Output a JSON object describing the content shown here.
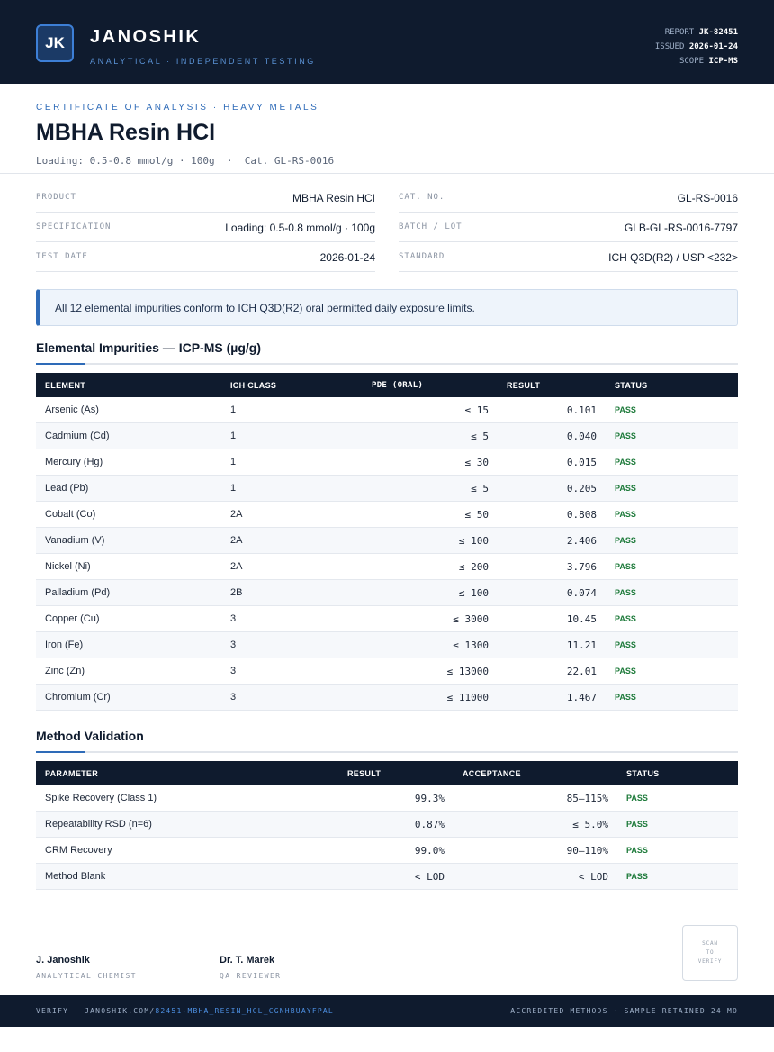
{
  "header": {
    "logo_text": "JK",
    "brand": "JANOSHIK",
    "tagline": "ANALYTICAL · INDEPENDENT TESTING",
    "meta": [
      {
        "label": "REPORT",
        "value": "JK-82451"
      },
      {
        "label": "ISSUED",
        "value": "2026-01-24"
      },
      {
        "label": "SCOPE",
        "value": "ICP-MS"
      }
    ]
  },
  "title_block": {
    "eyebrow": "CERTIFICATE OF ANALYSIS · HEAVY METALS",
    "title": "MBHA Resin HCI",
    "subtitle": "Loading: 0.5-0.8 mmol/g · 100g  ·  Cat. GL-RS-0016"
  },
  "info": {
    "left": [
      {
        "label": "PRODUCT",
        "value": "MBHA Resin HCI"
      },
      {
        "label": "SPECIFICATION",
        "value": "Loading: 0.5-0.8 mmol/g · 100g"
      },
      {
        "label": "TEST DATE",
        "value": "2026-01-24"
      }
    ],
    "right": [
      {
        "label": "CAT. NO.",
        "value": "GL-RS-0016"
      },
      {
        "label": "BATCH / LOT",
        "value": "GLB-GL-RS-0016-7797"
      },
      {
        "label": "STANDARD",
        "value": "ICH Q3D(R2) / USP <232>"
      }
    ]
  },
  "notice": "All 12 elemental impurities conform to ICH Q3D(R2) oral permitted daily exposure limits.",
  "impurities": {
    "heading": "Elemental Impurities — ICP-MS (µg/g)",
    "columns": [
      "ELEMENT",
      "ICH CLASS",
      "PDE (ORAL)",
      "RESULT",
      "STATUS"
    ],
    "rows": [
      {
        "element": "Arsenic (As)",
        "class": "1",
        "pde": "≤ 15",
        "result": "0.101",
        "status": "PASS"
      },
      {
        "element": "Cadmium (Cd)",
        "class": "1",
        "pde": "≤ 5",
        "result": "0.040",
        "status": "PASS"
      },
      {
        "element": "Mercury (Hg)",
        "class": "1",
        "pde": "≤ 30",
        "result": "0.015",
        "status": "PASS"
      },
      {
        "element": "Lead (Pb)",
        "class": "1",
        "pde": "≤ 5",
        "result": "0.205",
        "status": "PASS"
      },
      {
        "element": "Cobalt (Co)",
        "class": "2A",
        "pde": "≤ 50",
        "result": "0.808",
        "status": "PASS"
      },
      {
        "element": "Vanadium (V)",
        "class": "2A",
        "pde": "≤ 100",
        "result": "2.406",
        "status": "PASS"
      },
      {
        "element": "Nickel (Ni)",
        "class": "2A",
        "pde": "≤ 200",
        "result": "3.796",
        "status": "PASS"
      },
      {
        "element": "Palladium (Pd)",
        "class": "2B",
        "pde": "≤ 100",
        "result": "0.074",
        "status": "PASS"
      },
      {
        "element": "Copper (Cu)",
        "class": "3",
        "pde": "≤ 3000",
        "result": "10.45",
        "status": "PASS"
      },
      {
        "element": "Iron (Fe)",
        "class": "3",
        "pde": "≤ 1300",
        "result": "11.21",
        "status": "PASS"
      },
      {
        "element": "Zinc (Zn)",
        "class": "3",
        "pde": "≤ 13000",
        "result": "22.01",
        "status": "PASS"
      },
      {
        "element": "Chromium (Cr)",
        "class": "3",
        "pde": "≤ 11000",
        "result": "1.467",
        "status": "PASS"
      }
    ]
  },
  "validation": {
    "heading": "Method Validation",
    "columns": [
      "PARAMETER",
      "RESULT",
      "ACCEPTANCE",
      "STATUS"
    ],
    "rows": [
      {
        "parameter": "Spike Recovery (Class 1)",
        "result": "99.3%",
        "acceptance": "85–115%",
        "status": "PASS"
      },
      {
        "parameter": "Repeatability RSD (n=6)",
        "result": "0.87%",
        "acceptance": "≤ 5.0%",
        "status": "PASS"
      },
      {
        "parameter": "CRM Recovery",
        "result": "99.0%",
        "acceptance": "90–110%",
        "status": "PASS"
      },
      {
        "parameter": "Method Blank",
        "result": "< LOD",
        "acceptance": "< LOD",
        "status": "PASS"
      }
    ]
  },
  "signatures": [
    {
      "name": "J. Janoshik",
      "role": "ANALYTICAL CHEMIST"
    },
    {
      "name": "Dr. T. Marek",
      "role": "QA REVIEWER"
    }
  ],
  "qr": {
    "line1": "SCAN",
    "line2": "TO",
    "line3": "VERIFY"
  },
  "footer": {
    "verify_prefix": "VERIFY · JANOSHIK.COM/",
    "verify_link": "82451-MBHA_RESIN_HCL_CGNHBUAYFPAL",
    "right": "ACCREDITED METHODS · SAMPLE RETAINED 24 MO"
  },
  "colors": {
    "navy": "#0f1b2e",
    "accent": "#2e6bb8",
    "pass": "#1d7a3a"
  }
}
